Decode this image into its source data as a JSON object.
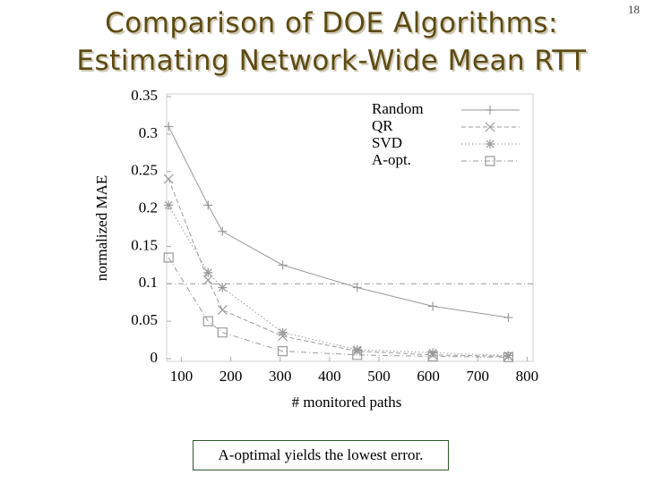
{
  "slide": {
    "title_line1": "Comparison of DOE Algorithms:",
    "title_line2": "Estimating Network-Wide Mean RTT",
    "page_number": "18",
    "caption": "A-optimal yields the lowest error."
  },
  "chart_data": {
    "type": "line",
    "xlabel": "# monitored paths",
    "ylabel": "normalized MAE",
    "xlim": [
      70,
      812
    ],
    "xticks": [
      100,
      200,
      300,
      400,
      500,
      600,
      700,
      800
    ],
    "ylim": [
      0,
      0.35
    ],
    "yticks": [
      0,
      0.05,
      0.1,
      0.15,
      0.2,
      0.25,
      0.3,
      0.35
    ],
    "hline": 0.1,
    "legend": "top-right",
    "series": [
      {
        "name": "Random",
        "color": "#9a9a9a",
        "marker": "plus",
        "line_style": "solid",
        "x": [
          74,
          154,
          183,
          305,
          456,
          609,
          762
        ],
        "values": [
          0.31,
          0.205,
          0.17,
          0.125,
          0.095,
          0.07,
          0.055
        ]
      },
      {
        "name": "QR",
        "color": "#9a9a9a",
        "marker": "cross",
        "line_style": "dashed",
        "x": [
          74,
          154,
          183,
          305,
          456,
          609,
          762
        ],
        "values": [
          0.24,
          0.105,
          0.065,
          0.03,
          0.01,
          0.005,
          0.003
        ]
      },
      {
        "name": "SVD",
        "color": "#9a9a9a",
        "marker": "star",
        "line_style": "dotted",
        "x": [
          74,
          154,
          183,
          305,
          456,
          609,
          762
        ],
        "values": [
          0.205,
          0.115,
          0.095,
          0.035,
          0.012,
          0.008,
          0.004
        ]
      },
      {
        "name": "A-opt.",
        "color": "#9a9a9a",
        "marker": "square",
        "line_style": "dashdot",
        "x": [
          74,
          154,
          183,
          305,
          456,
          609,
          762
        ],
        "values": [
          0.135,
          0.05,
          0.035,
          0.01,
          0.005,
          0.003,
          0.002
        ]
      }
    ]
  }
}
